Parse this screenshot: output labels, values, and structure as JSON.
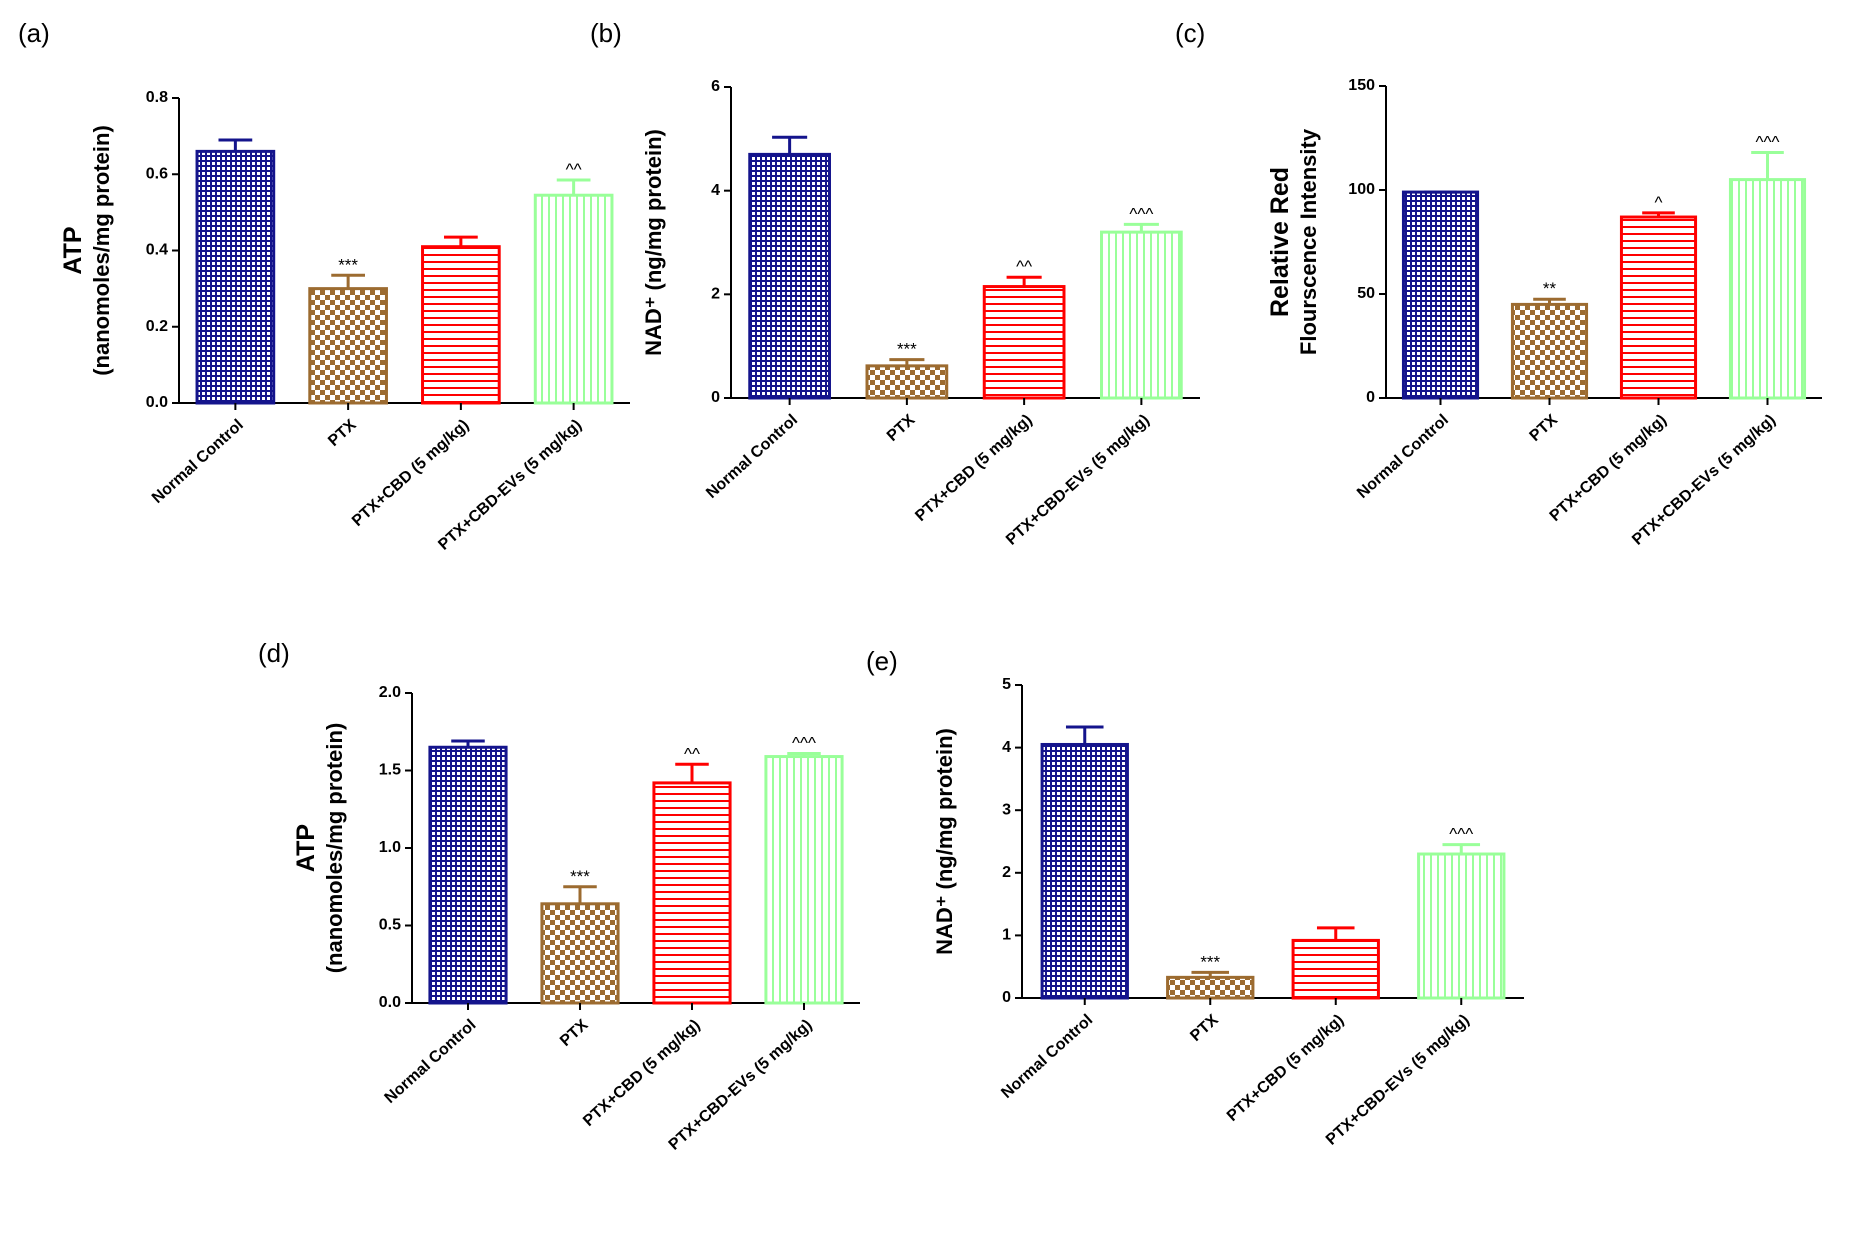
{
  "chart_data": [
    {
      "type": "bar",
      "panel_label": "(a)",
      "ylabel": [
        "ATP",
        "(nanomoles/mg protein)"
      ],
      "categories": [
        "Normal Control",
        "PTX",
        "PTX+CBD (5 mg/kg)",
        "PTX+CBD-EVs (5 mg/kg)"
      ],
      "values": [
        0.66,
        0.3,
        0.41,
        0.545
      ],
      "errors": [
        0.03,
        0.035,
        0.025,
        0.04
      ],
      "annotations": [
        null,
        "***",
        null,
        "^^"
      ],
      "colors": [
        "#14148c",
        "#9c6b30",
        "#ff0000",
        "#99ff99"
      ],
      "patterns": [
        "grid",
        "checker",
        "horizontal",
        "vertical"
      ],
      "ylim": [
        0,
        0.8
      ],
      "yticks": [
        {
          "value": 0,
          "label": "0.0"
        },
        0.2,
        0.4,
        0.6,
        0.8
      ]
    },
    {
      "type": "bar",
      "panel_label": "(b)",
      "ylabel": [
        "NAD⁺ (ng/mg protein)"
      ],
      "categories": [
        "Normal Control",
        "PTX",
        "PTX+CBD (5 mg/kg)",
        "PTX+CBD-EVs (5 mg/kg)"
      ],
      "values": [
        4.7,
        0.62,
        2.15,
        3.2
      ],
      "errors": [
        0.33,
        0.12,
        0.18,
        0.15
      ],
      "annotations": [
        null,
        "***",
        "^^",
        "^^^"
      ],
      "colors": [
        "#14148c",
        "#9c6b30",
        "#ff0000",
        "#99ff99"
      ],
      "patterns": [
        "grid",
        "checker",
        "horizontal",
        "vertical"
      ],
      "ylim": [
        0,
        6
      ],
      "yticks": [
        0,
        2,
        4,
        6
      ]
    },
    {
      "type": "bar",
      "panel_label": "(c)",
      "ylabel": [
        "Relative Red",
        "Flourscence Intensity"
      ],
      "categories": [
        "Normal Control",
        "PTX",
        "PTX+CBD (5 mg/kg)",
        "PTX+CBD-EVs (5 mg/kg)"
      ],
      "values": [
        99,
        45,
        87,
        105
      ],
      "errors": [
        0,
        2.5,
        2,
        13
      ],
      "annotations": [
        null,
        "**",
        "^",
        "^^^"
      ],
      "colors": [
        "#14148c",
        "#9c6b30",
        "#ff0000",
        "#99ff99"
      ],
      "patterns": [
        "grid",
        "checker",
        "horizontal",
        "vertical"
      ],
      "ylim": [
        0,
        150
      ],
      "yticks": [
        0,
        50,
        100,
        150
      ]
    },
    {
      "type": "bar",
      "panel_label": "(d)",
      "ylabel": [
        "ATP",
        "(nanomoles/mg protein)"
      ],
      "categories": [
        "Normal Control",
        "PTX",
        "PTX+CBD (5 mg/kg)",
        "PTX+CBD-EVs (5 mg/kg)"
      ],
      "values": [
        1.65,
        0.64,
        1.42,
        1.59
      ],
      "errors": [
        0.04,
        0.11,
        0.12,
        0.02
      ],
      "annotations": [
        null,
        "***",
        "^^",
        "^^^"
      ],
      "colors": [
        "#14148c",
        "#9c6b30",
        "#ff0000",
        "#99ff99"
      ],
      "patterns": [
        "grid",
        "checker",
        "horizontal",
        "vertical"
      ],
      "ylim": [
        0,
        2
      ],
      "yticks": [
        {
          "value": 0,
          "label": "0.0"
        },
        0.5,
        {
          "value": 1,
          "label": "1.0"
        },
        1.5,
        {
          "value": 2,
          "label": "2.0"
        }
      ]
    },
    {
      "type": "bar",
      "panel_label": "(e)",
      "ylabel": [
        "NAD⁺ (ng/mg protein)"
      ],
      "categories": [
        "Normal Control",
        "PTX",
        "PTX+CBD (5 mg/kg)",
        "PTX+CBD-EVs (5 mg/kg)"
      ],
      "values": [
        4.05,
        0.33,
        0.92,
        2.3
      ],
      "errors": [
        0.28,
        0.08,
        0.2,
        0.15
      ],
      "annotations": [
        null,
        "***",
        null,
        "^^^"
      ],
      "colors": [
        "#14148c",
        "#9c6b30",
        "#ff0000",
        "#99ff99"
      ],
      "patterns": [
        "grid",
        "checker",
        "horizontal",
        "vertical"
      ],
      "ylim": [
        0,
        5
      ],
      "yticks": [
        0,
        1,
        2,
        3,
        4,
        5
      ]
    }
  ]
}
